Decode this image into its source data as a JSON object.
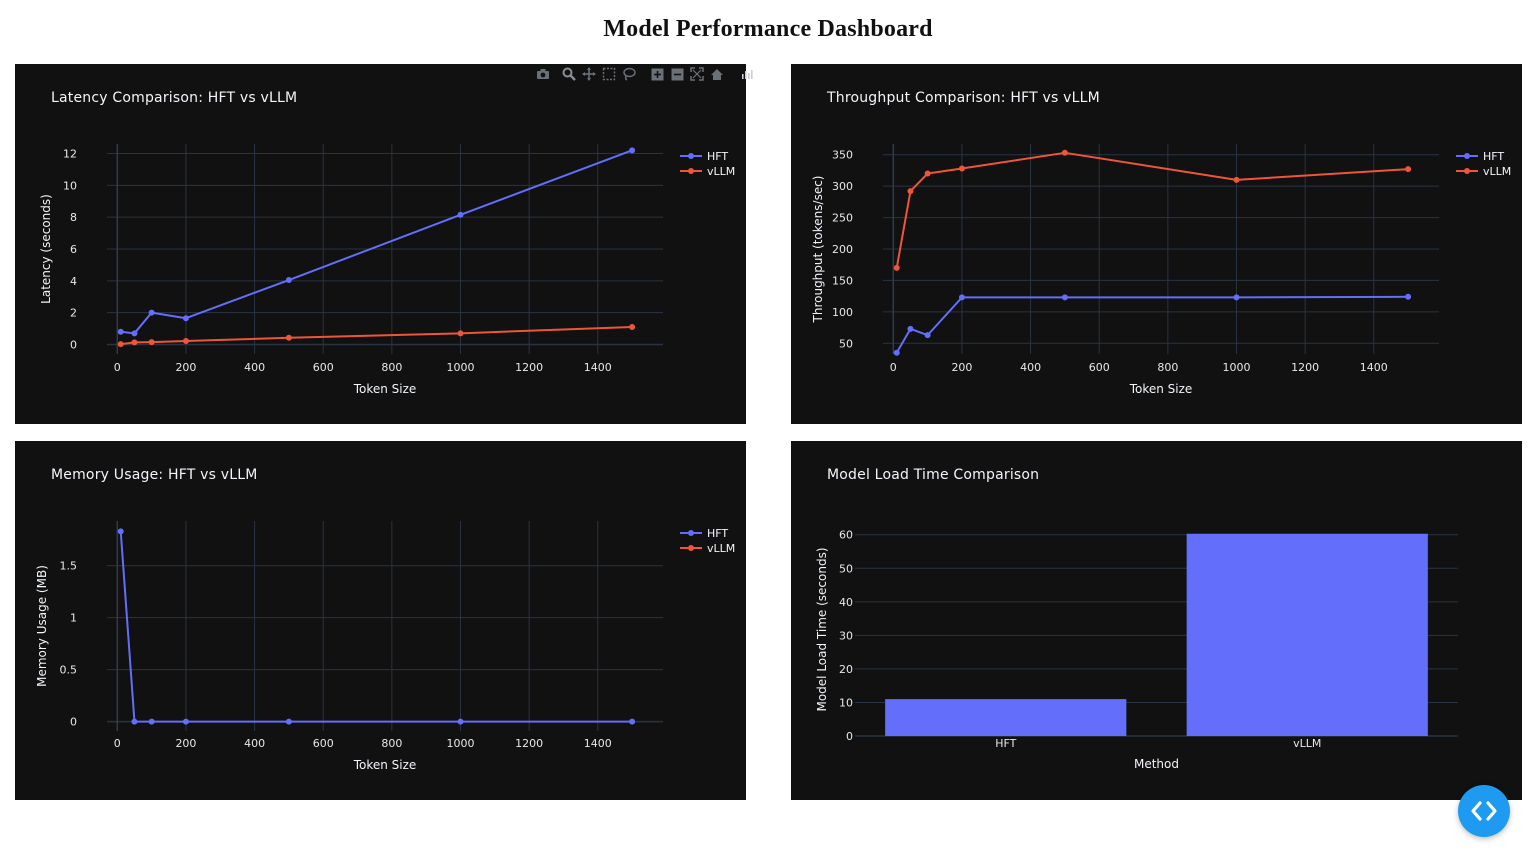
{
  "page": {
    "title": "Model Performance Dashboard"
  },
  "colors": {
    "hft": "#636efa",
    "vllm": "#ef553b",
    "panel_bg": "#111111",
    "grid": "#283442",
    "text": "#f2f5fa",
    "tick": "#e8e8e8",
    "fab": "#1e9bf0"
  },
  "modebar": {
    "icons": [
      "camera-icon",
      "zoom-icon",
      "pan-icon",
      "box-select-icon",
      "lasso-select-icon",
      "zoom-in-icon",
      "zoom-out-icon",
      "autoscale-icon",
      "reset-axes-icon",
      "plotly-logo-icon"
    ]
  },
  "fab": {
    "icon": "code-brackets-icon"
  },
  "chart_data": [
    {
      "type": "line",
      "title": "Latency Comparison: HFT vs vLLM",
      "xlabel": "Token Size",
      "ylabel": "Latency (seconds)",
      "xlim": [
        -30,
        1590
      ],
      "ylim": [
        -0.6,
        12.6
      ],
      "xticks": [
        0,
        200,
        400,
        600,
        800,
        1000,
        1200,
        1400
      ],
      "yticks": [
        0,
        2,
        4,
        6,
        8,
        10,
        12
      ],
      "ytick_labels": [
        "0",
        "2",
        "4",
        "6",
        "8",
        "10",
        "12"
      ],
      "x": [
        10,
        50,
        100,
        200,
        500,
        1000,
        1500
      ],
      "series": [
        {
          "name": "HFT",
          "color": "#636efa",
          "values": [
            0.8,
            0.7,
            2.0,
            1.65,
            4.05,
            8.15,
            12.2
          ]
        },
        {
          "name": "vLLM",
          "color": "#ef553b",
          "values": [
            0.02,
            0.13,
            0.15,
            0.22,
            0.42,
            0.7,
            1.1
          ]
        }
      ],
      "legend": "top-right",
      "grid": true
    },
    {
      "type": "line",
      "title": "Throughput Comparison: HFT vs vLLM",
      "xlabel": "Token Size",
      "ylabel": "Throughput (tokens/sec)",
      "xlim": [
        -30,
        1590
      ],
      "ylim": [
        33,
        367
      ],
      "xticks": [
        0,
        200,
        400,
        600,
        800,
        1000,
        1200,
        1400
      ],
      "yticks": [
        50,
        100,
        150,
        200,
        250,
        300,
        350
      ],
      "ytick_labels": [
        "50",
        "100",
        "150",
        "200",
        "250",
        "300",
        "350"
      ],
      "x": [
        10,
        50,
        100,
        200,
        500,
        1000,
        1500
      ],
      "series": [
        {
          "name": "HFT",
          "color": "#636efa",
          "values": [
            35,
            73,
            63,
            123,
            123,
            123,
            124
          ]
        },
        {
          "name": "vLLM",
          "color": "#ef553b",
          "values": [
            170,
            292,
            320,
            328,
            353,
            310,
            327
          ]
        }
      ],
      "legend": "top-right",
      "grid": true
    },
    {
      "type": "line",
      "title": "Memory Usage: HFT vs vLLM",
      "xlabel": "Token Size",
      "ylabel": "Memory Usage (MB)",
      "xlim": [
        -30,
        1590
      ],
      "ylim": [
        -0.09,
        1.93
      ],
      "xticks": [
        0,
        200,
        400,
        600,
        800,
        1000,
        1200,
        1400
      ],
      "yticks": [
        0,
        0.5,
        1,
        1.5
      ],
      "ytick_labels": [
        "0",
        "0.5",
        "1",
        "1.5"
      ],
      "x": [
        10,
        50,
        100,
        200,
        500,
        1000,
        1500
      ],
      "series": [
        {
          "name": "HFT",
          "color": "#636efa",
          "values": [
            1.83,
            0,
            0,
            0,
            0,
            0,
            0
          ]
        },
        {
          "name": "vLLM",
          "color": "#ef553b",
          "values": [
            null,
            null,
            null,
            null,
            null,
            null,
            null
          ]
        }
      ],
      "legend": "top-right",
      "grid": true
    },
    {
      "type": "bar",
      "title": "Model Load Time Comparison",
      "xlabel": "Method",
      "ylabel": "Model Load Time (seconds)",
      "categories": [
        "HFT",
        "vLLM"
      ],
      "values": [
        11,
        60.3
      ],
      "color": "#636efa",
      "ylim": [
        0,
        63.5
      ],
      "yticks": [
        0,
        10,
        20,
        30,
        40,
        50,
        60
      ],
      "ytick_labels": [
        "0",
        "10",
        "20",
        "30",
        "40",
        "50",
        "60"
      ],
      "grid": true
    }
  ]
}
